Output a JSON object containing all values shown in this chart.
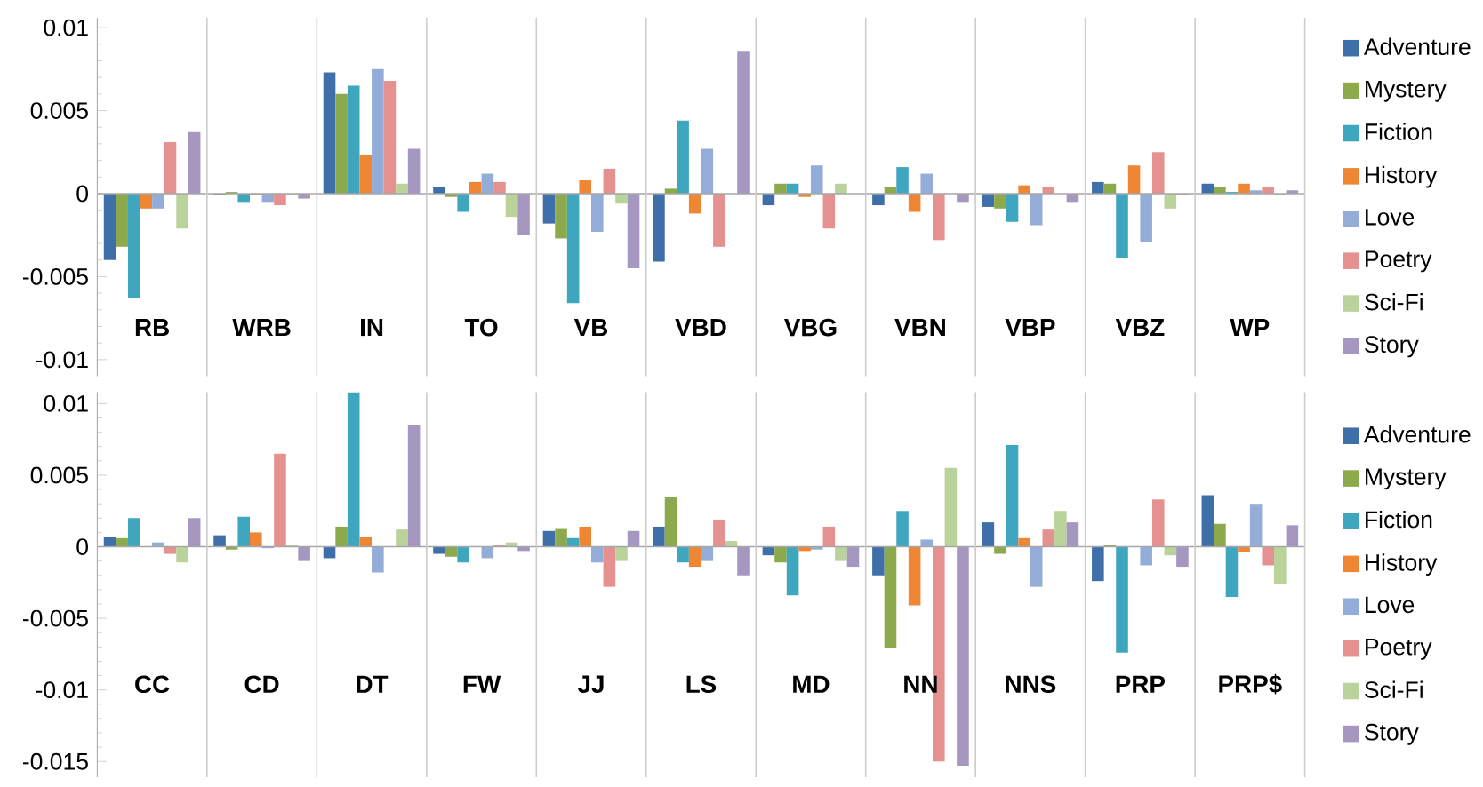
{
  "chart_data": [
    {
      "type": "bar",
      "categories": [
        "RB",
        "WRB",
        "IN",
        "TO",
        "VB",
        "VBD",
        "VBG",
        "VBN",
        "VBP",
        "VBZ",
        "WP"
      ],
      "series": [
        {
          "name": "Adventure",
          "color": "#3f6fa8",
          "values": [
            -0.004,
            -0.0001,
            0.0073,
            0.0004,
            -0.0018,
            -0.0041,
            -0.0007,
            -0.0007,
            -0.0008,
            0.0007,
            0.0006
          ]
        },
        {
          "name": "Mystery",
          "color": "#8caa4c",
          "values": [
            -0.0032,
            0.0001,
            0.006,
            -0.0002,
            -0.0027,
            0.0003,
            0.0006,
            0.0004,
            -0.0009,
            0.0006,
            0.0004
          ]
        },
        {
          "name": "Fiction",
          "color": "#3ea6bf",
          "values": [
            -0.0063,
            -0.0005,
            0.0065,
            -0.0011,
            -0.0066,
            0.0044,
            0.0006,
            0.0016,
            -0.0017,
            -0.0039,
            0.0001
          ]
        },
        {
          "name": "History",
          "color": "#ef8633",
          "values": [
            -0.0009,
            -0.0001,
            0.0023,
            0.0007,
            0.0008,
            -0.0012,
            -0.0002,
            -0.0011,
            0.0005,
            0.0017,
            0.0006
          ]
        },
        {
          "name": "Love",
          "color": "#94acd8",
          "values": [
            -0.0009,
            -0.0005,
            0.0075,
            0.0012,
            -0.0023,
            0.0027,
            0.0017,
            0.0012,
            -0.0019,
            -0.0029,
            0.0002
          ]
        },
        {
          "name": "Poetry",
          "color": "#e4918f",
          "values": [
            0.0031,
            -0.0007,
            0.0068,
            0.0007,
            0.0015,
            -0.0032,
            -0.0021,
            -0.0028,
            0.0004,
            0.0025,
            0.0004
          ]
        },
        {
          "name": "Sci-Fi",
          "color": "#b9d39a",
          "values": [
            -0.0021,
            -0.0001,
            0.0006,
            -0.0014,
            -0.0006,
            0,
            0.0006,
            0,
            0,
            -0.0009,
            -0.0001
          ]
        },
        {
          "name": "Story",
          "color": "#a597c0",
          "values": [
            0.0037,
            -0.0003,
            0.0027,
            -0.0025,
            -0.0045,
            0.0086,
            0,
            -0.0005,
            -0.0005,
            -0.0001,
            0.0002
          ]
        }
      ],
      "ylim": [
        -0.011,
        0.0106
      ],
      "yticks": [
        -0.01,
        -0.005,
        0,
        0.005,
        0.01
      ],
      "grid": "x",
      "legend": "right"
    },
    {
      "type": "bar",
      "categories": [
        "CC",
        "CD",
        "DT",
        "FW",
        "JJ",
        "LS",
        "MD",
        "NN",
        "NNS",
        "PRP",
        "PRP$"
      ],
      "series": [
        {
          "name": "Adventure",
          "color": "#3f6fa8",
          "values": [
            0.0007,
            0.0008,
            -0.0008,
            -0.0005,
            0.0011,
            0.0014,
            -0.0006,
            -0.002,
            0.0017,
            -0.0024,
            0.0036
          ]
        },
        {
          "name": "Mystery",
          "color": "#8caa4c",
          "values": [
            0.0006,
            -0.0002,
            0.0014,
            -0.0007,
            0.0013,
            0.0035,
            -0.0011,
            -0.0071,
            -0.0005,
            0.0001,
            0.0016
          ]
        },
        {
          "name": "Fiction",
          "color": "#3ea6bf",
          "values": [
            0.002,
            0.0021,
            0.0108,
            -0.0011,
            0.0006,
            -0.0011,
            -0.0034,
            0.0025,
            0.0071,
            -0.0074,
            -0.0035
          ]
        },
        {
          "name": "History",
          "color": "#ef8633",
          "values": [
            0,
            0.001,
            0.0007,
            0,
            0.0014,
            -0.0014,
            -0.0003,
            -0.0041,
            0.0006,
            0,
            -0.0004
          ]
        },
        {
          "name": "Love",
          "color": "#94acd8",
          "values": [
            0.0003,
            -0.0001,
            -0.0018,
            -0.0008,
            -0.0011,
            -0.001,
            -0.0002,
            0.0005,
            -0.0028,
            -0.0013,
            0.003
          ]
        },
        {
          "name": "Poetry",
          "color": "#e4918f",
          "values": [
            -0.0005,
            0.0065,
            0,
            0.0001,
            -0.0028,
            0.0019,
            0.0014,
            -0.015,
            0.0012,
            0.0033,
            -0.0013
          ]
        },
        {
          "name": "Sci-Fi",
          "color": "#b9d39a",
          "values": [
            -0.0011,
            0.0001,
            0.0012,
            0.0003,
            -0.001,
            0.0004,
            -0.001,
            0.0055,
            0.0025,
            -0.0006,
            -0.0026
          ]
        },
        {
          "name": "Story",
          "color": "#a597c0",
          "values": [
            0.002,
            -0.001,
            0.0085,
            -0.0003,
            0.0011,
            -0.002,
            -0.0014,
            -0.0153,
            0.0017,
            -0.0014,
            0.0015
          ]
        }
      ],
      "ylim": [
        -0.0161,
        0.0108
      ],
      "yticks": [
        -0.015,
        -0.01,
        -0.005,
        0,
        0.005,
        0.01
      ],
      "grid": "x",
      "legend": "right"
    }
  ]
}
